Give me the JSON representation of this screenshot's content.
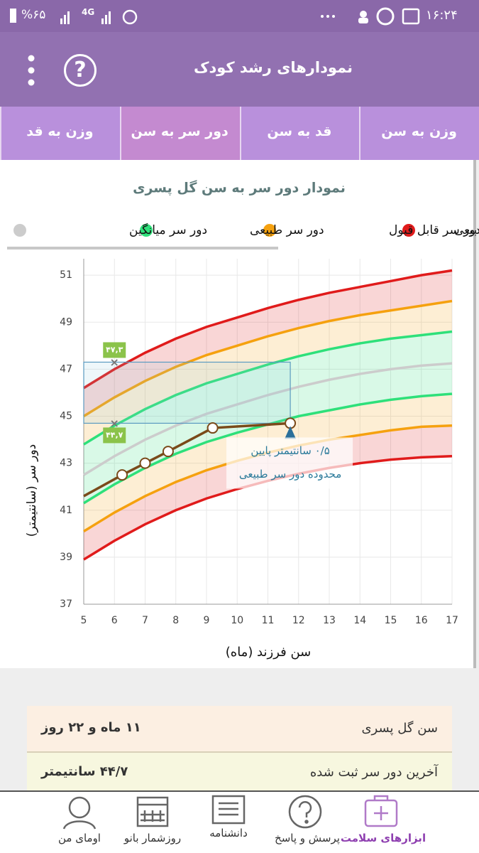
{
  "status_bar": {
    "battery": "%۶۵",
    "network": "4G",
    "time": "۱۶:۲۴"
  },
  "header": {
    "title": "نمودارهای رشد کودک",
    "help": "?"
  },
  "tabs": [
    "وزن به سن",
    "قد به سن",
    "دور سر به سن",
    "وزن به قد"
  ],
  "selected_tab": 2,
  "chart_data": {
    "type": "line",
    "title": "نمودار دور سر به سن گل پسری",
    "x_label": "سن فرزند (ماه)",
    "y_label": "دور سر (سانتیمتر)",
    "legend": [
      {
        "name": "بیعی",
        "color": "#e01b1b"
      },
      {
        "name": "دور سر قابل قبول",
        "color": "#f5a10f"
      },
      {
        "name": "دور سر طبیعی",
        "color": "#2ee07a"
      },
      {
        "name": "دور سر میانگین",
        "color": "#cccccc"
      }
    ],
    "x": [
      5,
      6,
      7,
      8,
      9,
      10,
      11,
      12,
      13,
      14,
      15,
      16,
      17
    ],
    "series": [
      {
        "color": "#e01b1b",
        "values": [
          46.2,
          47.0,
          47.7,
          48.3,
          48.8,
          49.2,
          49.6,
          49.95,
          50.25,
          50.5,
          50.75,
          51.0,
          51.2
        ]
      },
      {
        "color": "#f5a10f",
        "values": [
          45.0,
          45.8,
          46.5,
          47.1,
          47.6,
          48.0,
          48.4,
          48.75,
          49.05,
          49.3,
          49.5,
          49.7,
          49.9
        ]
      },
      {
        "color": "#2ee07a",
        "values": [
          43.8,
          44.6,
          45.3,
          45.9,
          46.4,
          46.8,
          47.2,
          47.55,
          47.85,
          48.1,
          48.3,
          48.45,
          48.6
        ]
      },
      {
        "color": "#cccccc",
        "values": [
          42.5,
          43.3,
          44.0,
          44.6,
          45.1,
          45.5,
          45.9,
          46.25,
          46.55,
          46.8,
          47.0,
          47.15,
          47.25
        ]
      },
      {
        "color": "#2ee07a",
        "values": [
          41.3,
          42.1,
          42.8,
          43.4,
          43.9,
          44.3,
          44.65,
          45.0,
          45.25,
          45.5,
          45.7,
          45.85,
          45.95
        ]
      },
      {
        "color": "#f5a10f",
        "values": [
          40.1,
          40.9,
          41.6,
          42.2,
          42.7,
          43.1,
          43.45,
          43.75,
          44.0,
          44.2,
          44.4,
          44.55,
          44.6
        ]
      },
      {
        "color": "#e01b1b",
        "values": [
          38.9,
          39.7,
          40.4,
          41.0,
          41.5,
          41.9,
          42.25,
          42.55,
          42.8,
          43.0,
          43.15,
          43.25,
          43.3
        ]
      }
    ],
    "measurements": {
      "color": "#7a4a1a",
      "x": [
        5,
        6.25,
        7,
        7.75,
        9.2,
        11.73
      ],
      "values": [
        41.6,
        42.5,
        43.0,
        43.5,
        44.5,
        44.7
      ]
    },
    "range": {
      "values": [
        44.7,
        47.3
      ],
      "labels": [
        "۴۴,۷",
        "۴۷,۳"
      ]
    },
    "annotation": [
      "۰/۵ سانتیمتر پایین",
      "محدوده دور سر طبیعی"
    ],
    "xlim": [
      5,
      17
    ],
    "xticks": [
      5,
      6,
      7,
      8,
      9,
      10,
      11,
      12,
      13,
      14,
      15,
      16,
      17
    ],
    "ylim": [
      37,
      51.7
    ],
    "yticks": [
      37,
      39,
      41,
      43,
      45,
      47,
      49,
      51
    ],
    "grid": true
  },
  "info": [
    {
      "label": "سن گل پسری",
      "value": "۱۱ ماه و ۲۲ روز"
    },
    {
      "label": "آخرین دور سر ثبت شده",
      "value": "۴۴/۷ سانتیمتر"
    }
  ],
  "bottom_nav": [
    "ابزارهای سلامت",
    "پرسش و پاسخ",
    "دانشنامه",
    "روزشمار بانو",
    "اومای من"
  ]
}
